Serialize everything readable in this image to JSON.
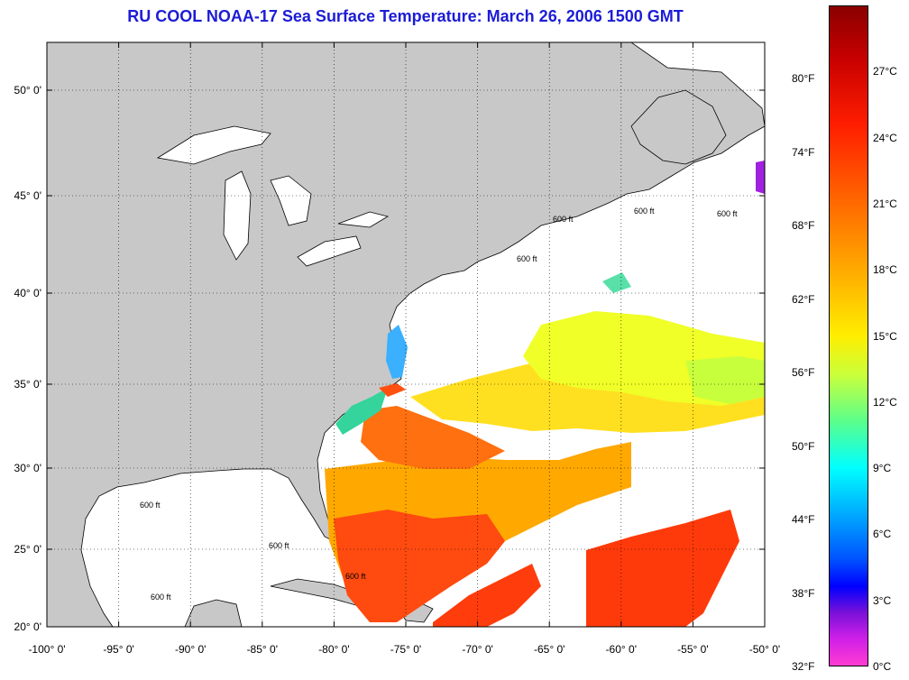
{
  "title": "RU COOL  NOAA-17  Sea Surface Temperature:  March 26, 2006 1500 GMT",
  "lon_ticks": [
    "-100° 0'",
    "-95° 0'",
    "-90° 0'",
    "-85° 0'",
    "-80° 0'",
    "-75° 0'",
    "-70° 0'",
    "-65° 0'",
    "-60° 0'",
    "-55° 0'",
    "-50° 0'"
  ],
  "lat_ticks": [
    "50° 0'",
    "45° 0'",
    "40° 0'",
    "35° 0'",
    "30° 0'",
    "25° 0'",
    "20° 0'"
  ],
  "contour_label": "600 ft",
  "colorbar": {
    "fahrenheit": [
      "80°F",
      "74°F",
      "68°F",
      "62°F",
      "56°F",
      "50°F",
      "44°F",
      "38°F",
      "32°F"
    ],
    "celsius": [
      "27°C",
      "24°C",
      "21°C",
      "18°C",
      "15°C",
      "12°C",
      "9°C",
      "6°C",
      "3°C",
      "0°C"
    ]
  },
  "colors": {
    "land": "#c8c8c8",
    "ocean": "#ffffff",
    "title": "#1c1cd6"
  }
}
